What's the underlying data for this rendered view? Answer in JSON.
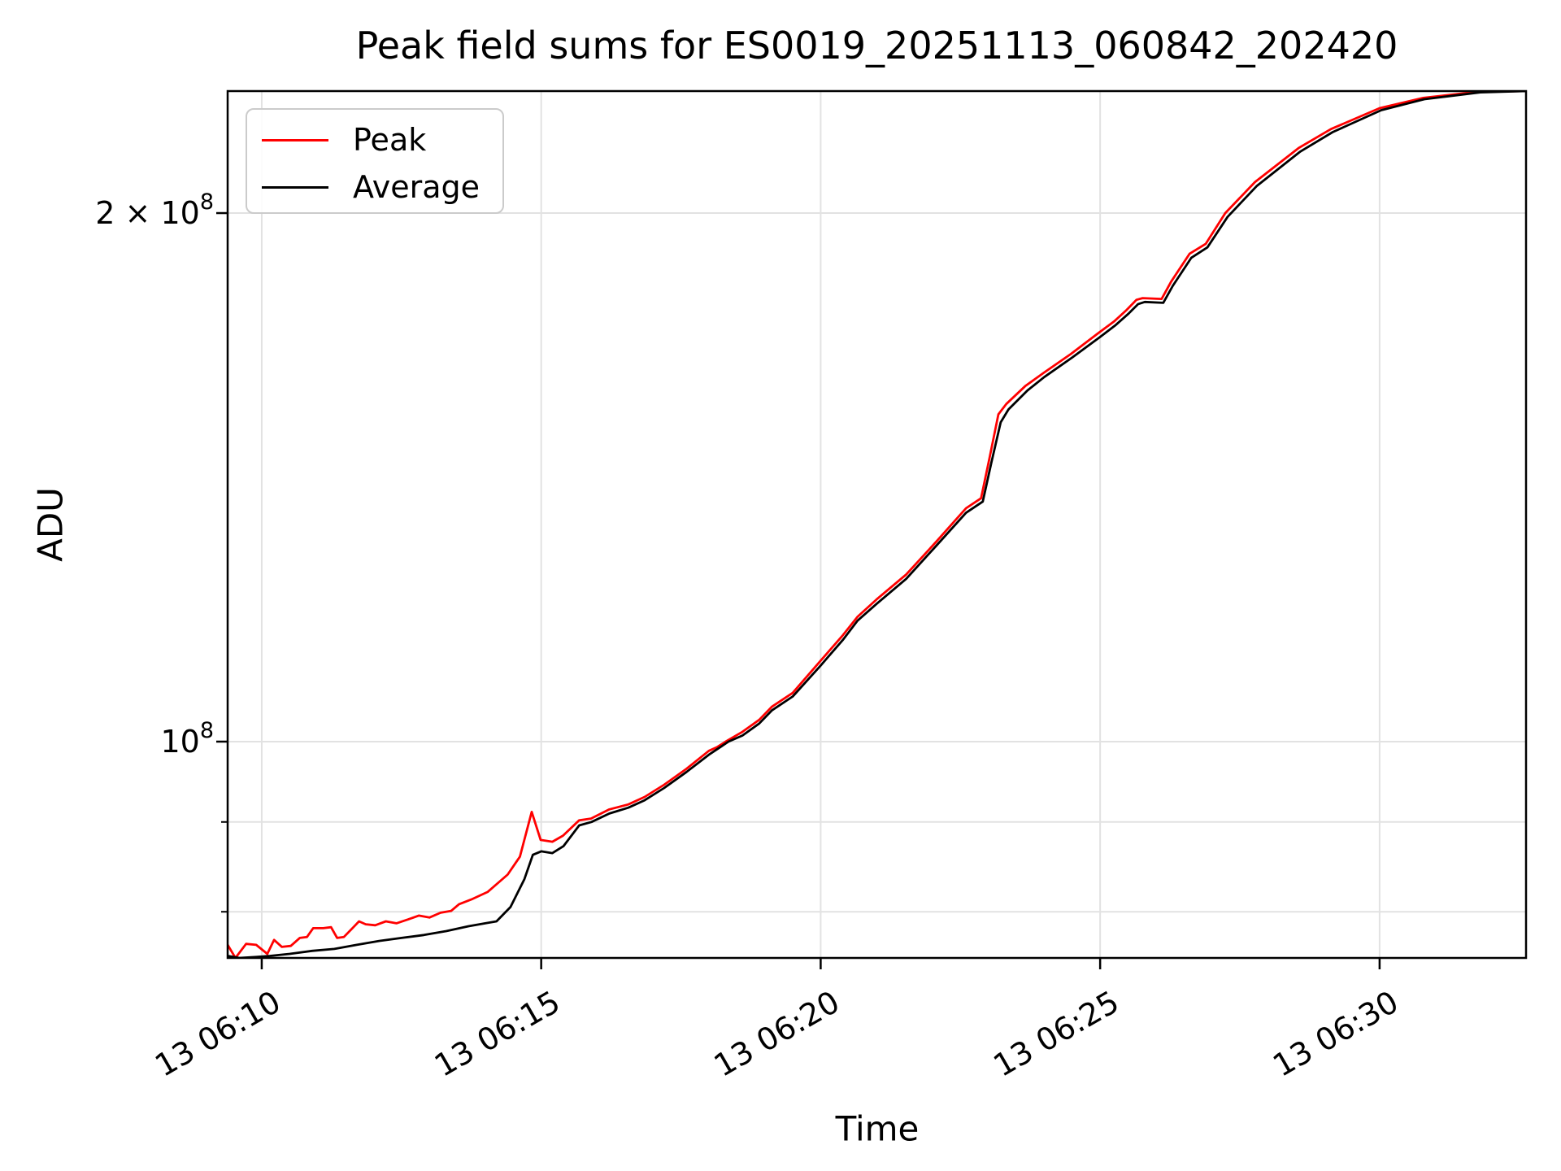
{
  "figure": {
    "title": "Peak field sums for ES0019_20251113_060842_202420",
    "xlabel": "Time",
    "ylabel": "ADU"
  },
  "legend": {
    "position": "upper left",
    "items": [
      {
        "label": "Peak",
        "color": "#ff0000"
      },
      {
        "label": "Average",
        "color": "#000000"
      }
    ]
  },
  "colors": {
    "background": "#ffffff",
    "grid": "#e2e2e2",
    "spine": "#000000",
    "tick_text": "#000000"
  },
  "chart_data": {
    "type": "line",
    "title": "Peak field sums for ES0019_20251113_060842_202420",
    "xlabel": "Time",
    "ylabel": "ADU",
    "yscale": "log",
    "grid": true,
    "legend_position": "upper left",
    "x_unit": "minutes after 2025-11-13 06:00",
    "xlim": [
      9.39,
      32.62
    ],
    "ylim": [
      75300000.0,
      234700000.0
    ],
    "x_ticks": [
      {
        "label": "13 06:10",
        "t": 10
      },
      {
        "label": "13 06:15",
        "t": 15
      },
      {
        "label": "13 06:20",
        "t": 20
      },
      {
        "label": "13 06:25",
        "t": 25
      },
      {
        "label": "13 06:30",
        "t": 30
      }
    ],
    "y_ticks_major": [
      {
        "base": "10",
        "exp": "8",
        "v": 100000000.0
      },
      {
        "base": "2 × 10",
        "exp": "8",
        "v": 200000000.0
      }
    ],
    "y_ticks_minor": [
      80000000.0,
      90000000.0
    ],
    "series": [
      {
        "name": "Peak",
        "color": "#ff0000",
        "points": [
          [
            9.39,
            76600000.0
          ],
          [
            9.53,
            75300000.0
          ],
          [
            9.72,
            76700000.0
          ],
          [
            9.9,
            76600000.0
          ],
          [
            10.1,
            75700000.0
          ],
          [
            10.22,
            77100000.0
          ],
          [
            10.36,
            76400000.0
          ],
          [
            10.52,
            76500000.0
          ],
          [
            10.68,
            77300000.0
          ],
          [
            10.81,
            77400000.0
          ],
          [
            10.92,
            78300000.0
          ],
          [
            11.1,
            78300000.0
          ],
          [
            11.24,
            78400000.0
          ],
          [
            11.35,
            77300000.0
          ],
          [
            11.47,
            77400000.0
          ],
          [
            11.64,
            78400000.0
          ],
          [
            11.74,
            79000000.0
          ],
          [
            11.86,
            78700000.0
          ],
          [
            12.03,
            78600000.0
          ],
          [
            12.22,
            79000000.0
          ],
          [
            12.41,
            78800000.0
          ],
          [
            12.62,
            79200000.0
          ],
          [
            12.81,
            79600000.0
          ],
          [
            13.0,
            79400000.0
          ],
          [
            13.2,
            79900000.0
          ],
          [
            13.39,
            80100000.0
          ],
          [
            13.53,
            80800000.0
          ],
          [
            13.75,
            81300000.0
          ],
          [
            14.04,
            82100000.0
          ],
          [
            14.4,
            84000000.0
          ],
          [
            14.62,
            86000000.0
          ],
          [
            14.83,
            91200000.0
          ],
          [
            14.99,
            87900000.0
          ],
          [
            15.2,
            87700000.0
          ],
          [
            15.39,
            88400000.0
          ],
          [
            15.68,
            90200000.0
          ],
          [
            15.89,
            90400000.0
          ],
          [
            16.22,
            91500000.0
          ],
          [
            16.56,
            92100000.0
          ],
          [
            16.85,
            93000000.0
          ],
          [
            17.2,
            94500000.0
          ],
          [
            17.6,
            96500000.0
          ],
          [
            18.0,
            98800000.0
          ],
          [
            18.15,
            99300000.0
          ],
          [
            18.3,
            100000000.0
          ],
          [
            18.6,
            101300000.0
          ],
          [
            18.9,
            102900000.0
          ],
          [
            19.13,
            104700000.0
          ],
          [
            19.5,
            106600000.0
          ],
          [
            20.0,
            111200000.0
          ],
          [
            20.4,
            115000000.0
          ],
          [
            20.66,
            117800000.0
          ],
          [
            21.0,
            120500000.0
          ],
          [
            21.53,
            124500000.0
          ],
          [
            22.07,
            130000000.0
          ],
          [
            22.6,
            135800000.0
          ],
          [
            22.87,
            137600000.0
          ],
          [
            23.02,
            145000000.0
          ],
          [
            23.18,
            153600000.0
          ],
          [
            23.32,
            155700000.0
          ],
          [
            23.66,
            159400000.0
          ],
          [
            23.99,
            162200000.0
          ],
          [
            24.48,
            166300000.0
          ],
          [
            24.96,
            170800000.0
          ],
          [
            25.25,
            173500000.0
          ],
          [
            25.47,
            176100000.0
          ],
          [
            25.65,
            178500000.0
          ],
          [
            25.76,
            178900000.0
          ],
          [
            26.1,
            178700000.0
          ],
          [
            26.27,
            182800000.0
          ],
          [
            26.6,
            189600000.0
          ],
          [
            26.89,
            192100000.0
          ],
          [
            27.24,
            200000000.0
          ],
          [
            27.77,
            208300000.0
          ],
          [
            28.55,
            217800000.0
          ],
          [
            29.13,
            223300000.0
          ],
          [
            30.0,
            229500000.0
          ],
          [
            30.78,
            232600000.0
          ],
          [
            31.76,
            234500000.0
          ],
          [
            32.62,
            234700000.0
          ]
        ]
      },
      {
        "name": "Average",
        "color": "#000000",
        "points": [
          [
            9.39,
            75500000.0
          ],
          [
            9.6,
            75300000.0
          ],
          [
            9.9,
            75400000.0
          ],
          [
            10.15,
            75500000.0
          ],
          [
            10.5,
            75700000.0
          ],
          [
            10.9,
            76000000.0
          ],
          [
            11.3,
            76200000.0
          ],
          [
            11.7,
            76600000.0
          ],
          [
            12.1,
            77000000.0
          ],
          [
            12.5,
            77300000.0
          ],
          [
            12.9,
            77600000.0
          ],
          [
            13.3,
            78000000.0
          ],
          [
            13.7,
            78500000.0
          ],
          [
            14.0,
            78800000.0
          ],
          [
            14.2,
            79000000.0
          ],
          [
            14.45,
            80500000.0
          ],
          [
            14.7,
            83500000.0
          ],
          [
            14.85,
            86200000.0
          ],
          [
            15.0,
            86600000.0
          ],
          [
            15.2,
            86400000.0
          ],
          [
            15.4,
            87200000.0
          ],
          [
            15.68,
            89600000.0
          ],
          [
            15.9,
            90000000.0
          ],
          [
            16.22,
            91000000.0
          ],
          [
            16.56,
            91700000.0
          ],
          [
            16.85,
            92600000.0
          ],
          [
            17.2,
            94100000.0
          ],
          [
            17.6,
            96100000.0
          ],
          [
            18.0,
            98300000.0
          ],
          [
            18.35,
            100000000.0
          ],
          [
            18.6,
            100800000.0
          ],
          [
            18.9,
            102400000.0
          ],
          [
            19.13,
            104200000.0
          ],
          [
            19.5,
            106100000.0
          ],
          [
            20.0,
            110500000.0
          ],
          [
            20.4,
            114300000.0
          ],
          [
            20.66,
            117200000.0
          ],
          [
            21.0,
            119800000.0
          ],
          [
            21.53,
            123800000.0
          ],
          [
            22.07,
            129300000.0
          ],
          [
            22.6,
            135000000.0
          ],
          [
            22.9,
            137000000.0
          ],
          [
            23.05,
            144000000.0
          ],
          [
            23.22,
            152000000.0
          ],
          [
            23.36,
            154600000.0
          ],
          [
            23.7,
            158500000.0
          ],
          [
            24.0,
            161300000.0
          ],
          [
            24.5,
            165500000.0
          ],
          [
            25.0,
            170000000.0
          ],
          [
            25.28,
            172700000.0
          ],
          [
            25.5,
            175200000.0
          ],
          [
            25.68,
            177500000.0
          ],
          [
            25.8,
            178000000.0
          ],
          [
            26.13,
            177800000.0
          ],
          [
            26.3,
            181800000.0
          ],
          [
            26.63,
            188600000.0
          ],
          [
            26.92,
            191200000.0
          ],
          [
            27.28,
            199000000.0
          ],
          [
            27.8,
            207200000.0
          ],
          [
            28.58,
            216800000.0
          ],
          [
            29.16,
            222400000.0
          ],
          [
            30.03,
            228900000.0
          ],
          [
            30.8,
            232200000.0
          ],
          [
            31.8,
            234300000.0
          ],
          [
            32.62,
            234700000.0
          ]
        ]
      }
    ]
  }
}
